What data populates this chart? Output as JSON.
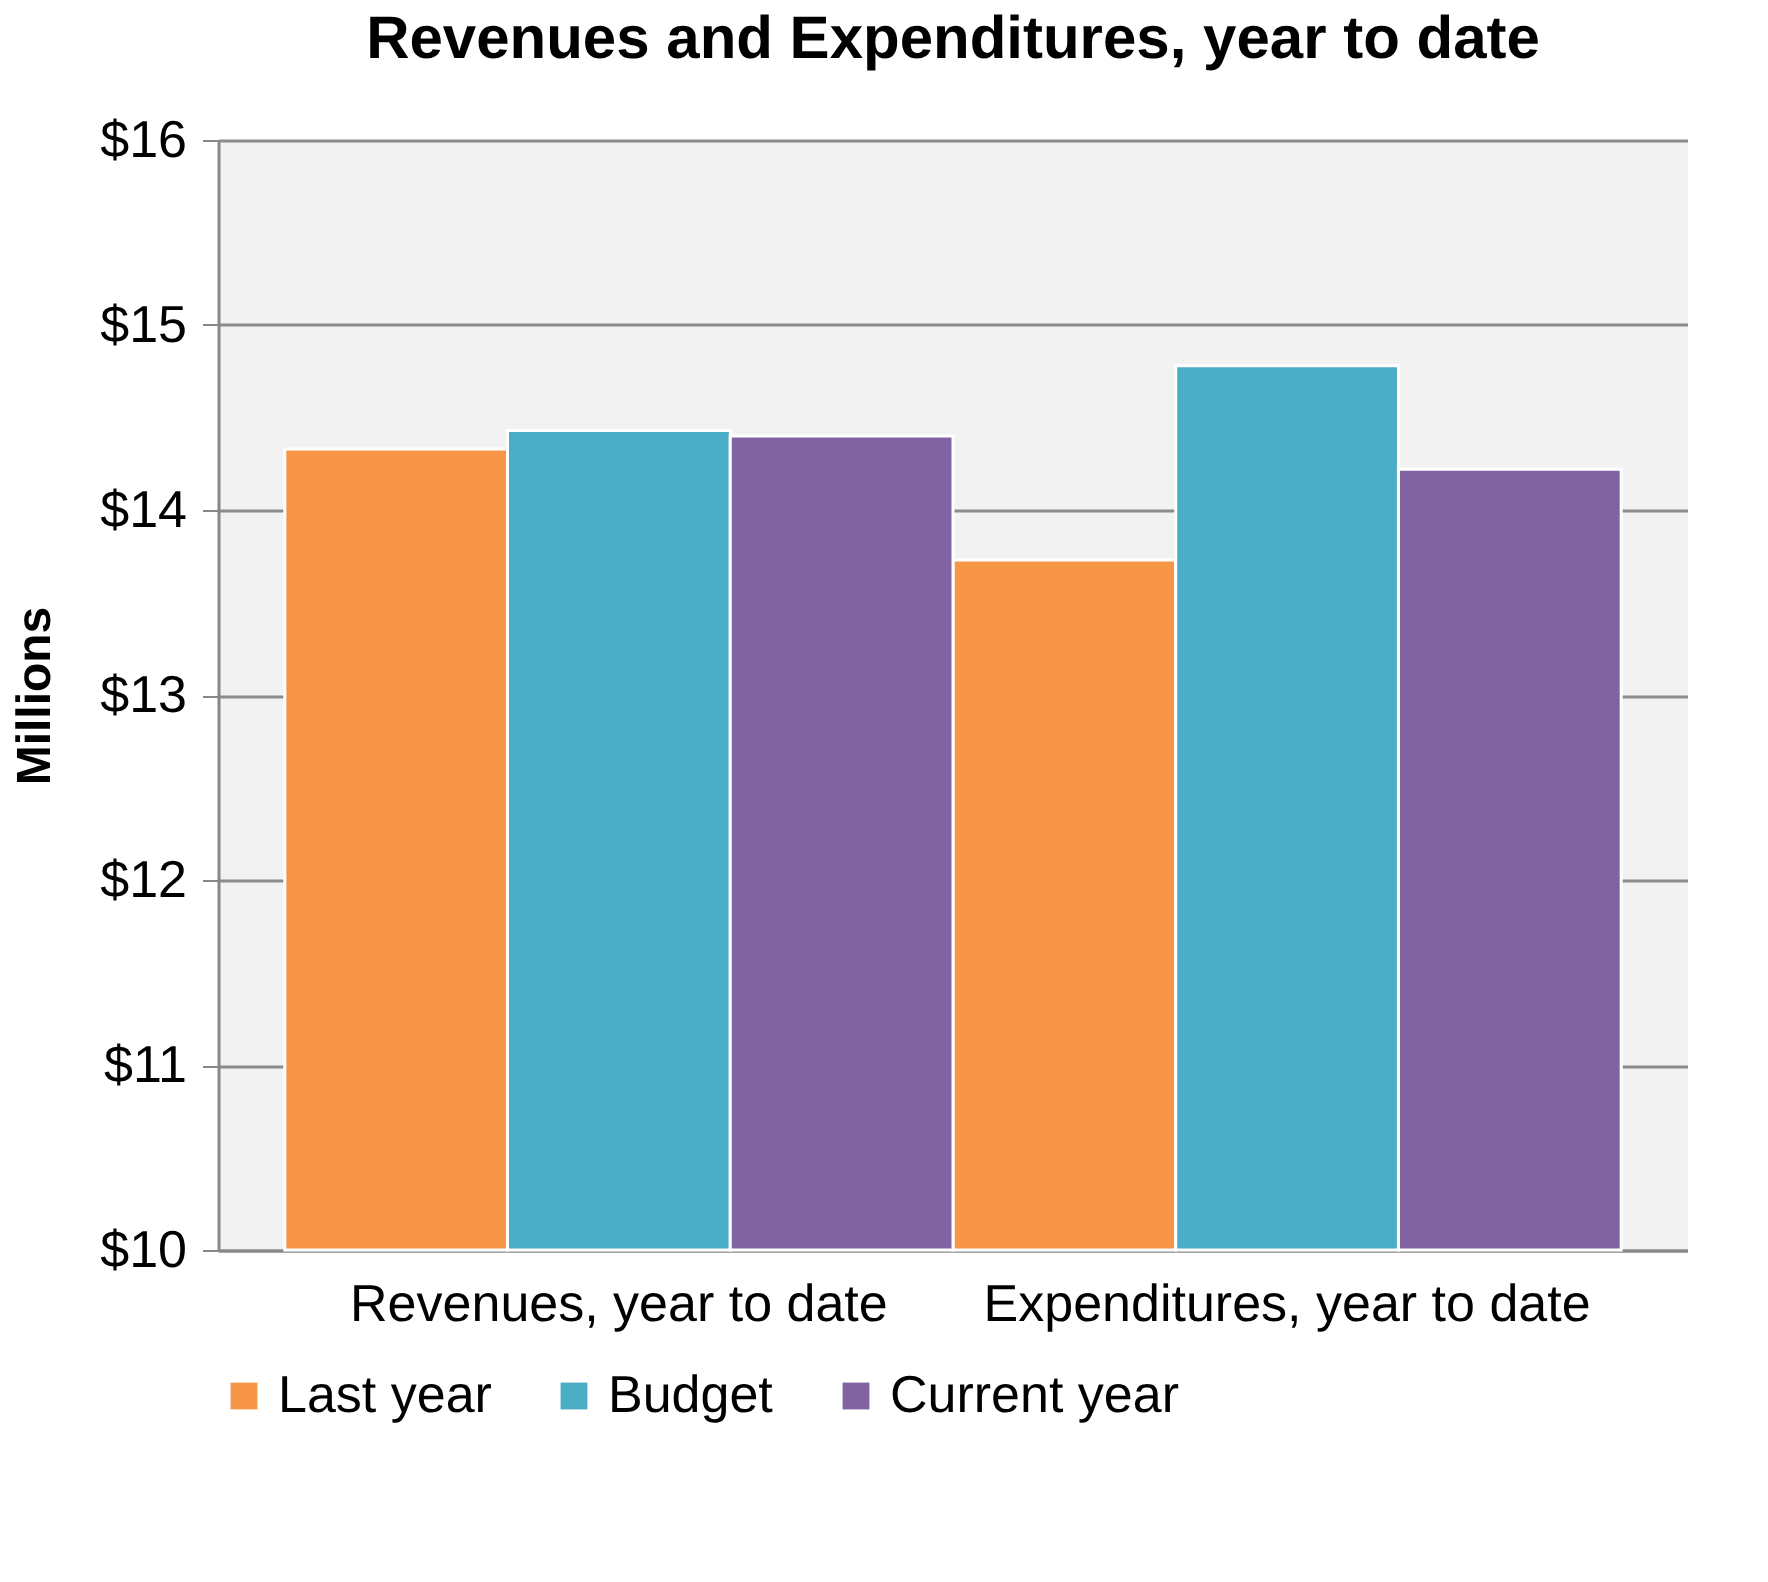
{
  "chart_data": {
    "type": "bar",
    "title": "Revenues and Expenditures, year to date",
    "ylabel": "Millions",
    "categories": [
      "Revenues, year to date",
      "Expenditures, year to date"
    ],
    "series": [
      {
        "name": "Last year",
        "color": "#f79646",
        "values": [
          14.33,
          13.73
        ]
      },
      {
        "name": "Budget",
        "color": "#4bacc6",
        "values": [
          14.43,
          14.78
        ]
      },
      {
        "name": "Current year",
        "color": "#8064a2",
        "values": [
          14.4,
          14.22
        ]
      }
    ],
    "ylim": [
      10,
      16
    ],
    "yticks": [
      {
        "value": 10,
        "label": "$10"
      },
      {
        "value": 11,
        "label": "$11"
      },
      {
        "value": 12,
        "label": "$12"
      },
      {
        "value": 13,
        "label": "$13"
      },
      {
        "value": 14,
        "label": "$14"
      },
      {
        "value": 15,
        "label": "$15"
      },
      {
        "value": 16,
        "label": "$16"
      }
    ],
    "grid": "y",
    "legend": "bottom"
  }
}
